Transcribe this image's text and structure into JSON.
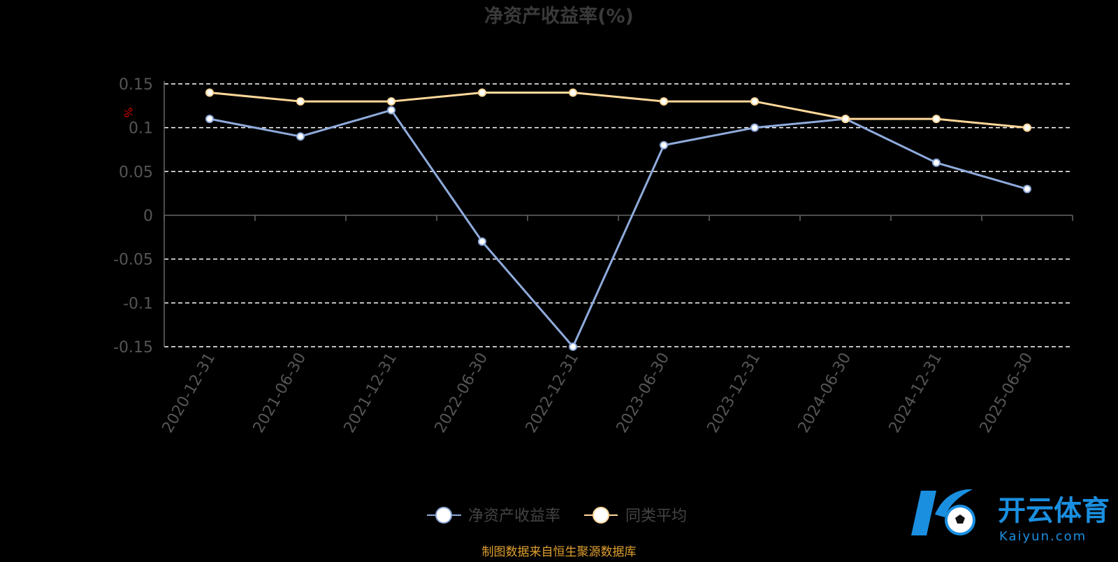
{
  "chart_data": {
    "type": "line",
    "title": "净资产收益率(%)",
    "ylabel": "%",
    "xlabel": "",
    "categories": [
      "2020-12-31",
      "2021-06-30",
      "2021-12-31",
      "2022-06-30",
      "2022-12-31",
      "2023-06-30",
      "2023-12-31",
      "2024-06-30",
      "2024-12-31",
      "2025-06-30"
    ],
    "ylim": [
      -0.15,
      0.15
    ],
    "yticks": [
      "0.15",
      "0.1",
      "0.05",
      "0",
      "-0.05",
      "-0.1",
      "-0.15"
    ],
    "grid": true,
    "legend_position": "bottom-center",
    "series": [
      {
        "name": "净资产收益率",
        "color": "#8fabdc",
        "values": [
          0.11,
          0.09,
          0.12,
          -0.03,
          -0.15,
          0.08,
          0.1,
          0.11,
          0.06,
          0.03
        ]
      },
      {
        "name": "同类平均",
        "color": "#ffd89a",
        "values": [
          0.14,
          0.13,
          0.13,
          0.14,
          0.14,
          0.13,
          0.13,
          0.11,
          0.11,
          0.1
        ]
      }
    ]
  },
  "source_note": "制图数据来自恒生聚源数据库",
  "watermark": {
    "brand_cn": "开云体育",
    "brand_url": "Kaiyun.com"
  },
  "colors": {
    "background": "#000000",
    "axis": "#666666",
    "grid": "#ffffff",
    "title": "#3a3a3a",
    "tick": "#555555",
    "source": "#e0a030",
    "ylabel": "#cc0000"
  }
}
